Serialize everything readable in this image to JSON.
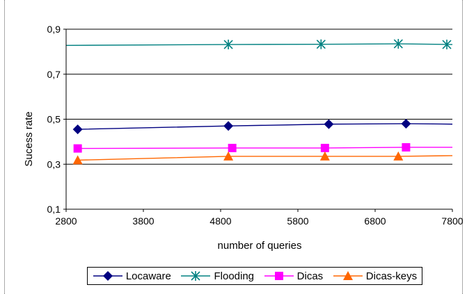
{
  "chart_data": {
    "type": "line",
    "title": "",
    "xlabel": "number of queries",
    "ylabel": "Sucess rate",
    "xlim": [
      2800,
      7800
    ],
    "ylim": [
      0.1,
      0.9
    ],
    "xticks": [
      2800,
      3800,
      4800,
      5800,
      6800,
      7800
    ],
    "yticks": [
      0.1,
      0.3,
      0.5,
      0.7,
      0.9
    ],
    "xtick_labels": [
      "2800",
      "3800",
      "4800",
      "5800",
      "6800",
      "7800"
    ],
    "ytick_labels": [
      "0,1",
      "0,3",
      "0,5",
      "0,7",
      "0,9"
    ],
    "grid": "horizontal",
    "legend_position": "bottom",
    "series": [
      {
        "name": "Locaware",
        "color": "#000080",
        "marker": "diamond",
        "x": [
          2950,
          4900,
          6200,
          7200,
          7800
        ],
        "y": [
          0.455,
          0.47,
          0.478,
          0.48,
          0.478
        ],
        "marked": [
          true,
          true,
          true,
          true,
          false
        ]
      },
      {
        "name": "Flooding",
        "color": "#008080",
        "marker": "asterisk",
        "x": [
          2800,
          4900,
          6100,
          7100,
          7800
        ],
        "y": [
          0.828,
          0.832,
          0.833,
          0.835,
          0.832
        ],
        "marked": [
          false,
          true,
          true,
          true,
          true
        ]
      },
      {
        "name": "Dicas",
        "color": "#ff00ff",
        "marker": "square",
        "x": [
          2950,
          4950,
          6150,
          7200,
          7850
        ],
        "y": [
          0.37,
          0.372,
          0.372,
          0.375,
          0.375
        ],
        "marked": [
          true,
          true,
          true,
          true,
          false
        ]
      },
      {
        "name": "Dicas-keys",
        "color": "#ff6600",
        "marker": "triangle",
        "x": [
          2950,
          4900,
          6150,
          7100,
          7850
        ],
        "y": [
          0.318,
          0.335,
          0.335,
          0.335,
          0.338
        ],
        "marked": [
          true,
          true,
          true,
          true,
          false
        ]
      }
    ]
  }
}
